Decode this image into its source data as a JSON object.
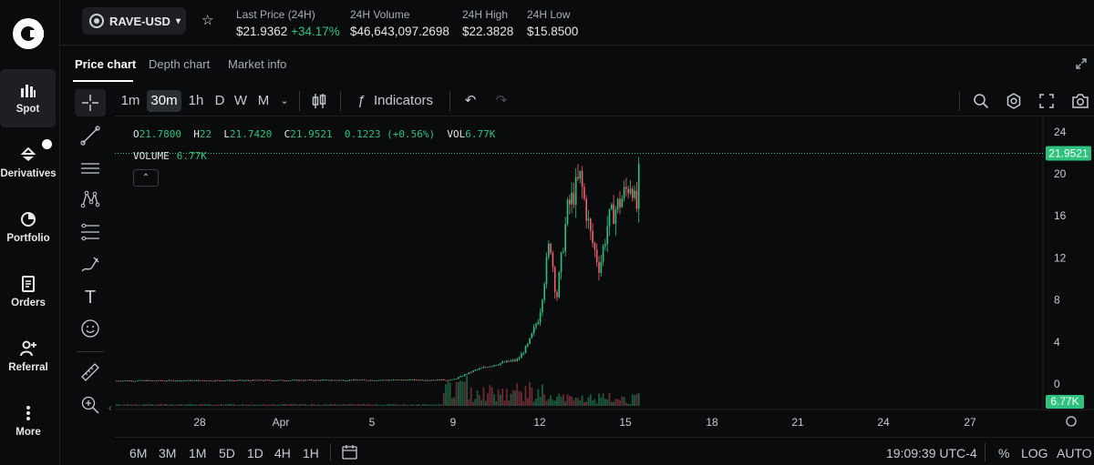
{
  "nav": {
    "items": [
      {
        "label": "Spot",
        "icon": "bar-chart-icon",
        "glyph": "▮▮▮"
      },
      {
        "label": "Derivatives",
        "icon": "scale-icon",
        "glyph": "⇅"
      },
      {
        "label": "Portfolio",
        "icon": "pie-chart-icon",
        "glyph": "◔"
      },
      {
        "label": "Orders",
        "icon": "document-icon",
        "glyph": "☰"
      },
      {
        "label": "Referral",
        "icon": "user-add-icon",
        "glyph": "⚇"
      },
      {
        "label": "More",
        "icon": "more-vertical-icon",
        "glyph": "⋮"
      }
    ]
  },
  "header": {
    "pair": "RAVE-USD",
    "stats": [
      {
        "label": "Last Price (24H)",
        "value": "$21.9362",
        "change": "+34.17%"
      },
      {
        "label": "24H Volume",
        "value": "$46,643,097.2698"
      },
      {
        "label": "24H High",
        "value": "$22.3828"
      },
      {
        "label": "24H Low",
        "value": "$15.8500"
      }
    ]
  },
  "tabs": [
    "Price chart",
    "Depth chart",
    "Market info"
  ],
  "toolbar": {
    "intervals": [
      "1m",
      "30m",
      "1h",
      "D",
      "W",
      "M"
    ],
    "selected_interval": "30m",
    "indicators_label": "Indicators"
  },
  "legend": {
    "o_label": "O",
    "o": "21.7800",
    "h_label": "H",
    "h": "22",
    "l_label": "L",
    "l": "21.7420",
    "c_label": "C",
    "c": "21.9521",
    "change": "0.1223 (+0.56%)",
    "vol_label": "VOL",
    "vol": "6.77K",
    "volume_label": "VOLUME",
    "volume": "6.77K"
  },
  "chart_data": {
    "type": "candlestick",
    "y_ticks": [
      "24",
      "20",
      "16",
      "12",
      "8",
      "4",
      "0"
    ],
    "ylim": [
      -0.5,
      25
    ],
    "x_ticks": [
      "28",
      "Apr",
      "5",
      "9",
      "12",
      "15",
      "18",
      "21",
      "24",
      "27"
    ],
    "last_price_label": "21.9521",
    "volume_label": "6.77K",
    "price_path": [
      {
        "x": "Mar 22",
        "y": 0.3
      },
      {
        "x": "Apr 1",
        "y": 0.35
      },
      {
        "x": "Apr 9",
        "y": 0.4
      },
      {
        "x": "Apr 10",
        "y": 1.3
      },
      {
        "x": "Apr 11",
        "y": 1.9
      },
      {
        "x": "Apr 12",
        "y": 2.3
      },
      {
        "x": "Apr 12.5",
        "y": 3.8
      },
      {
        "x": "Apr 13",
        "y": 6.5
      },
      {
        "x": "Apr 13.5",
        "y": 13.8
      },
      {
        "x": "Apr 13.8",
        "y": 8.0
      },
      {
        "x": "Apr 14.3",
        "y": 16.5
      },
      {
        "x": "Apr 14.9",
        "y": 19.6
      },
      {
        "x": "Apr 15.4",
        "y": 14.0
      },
      {
        "x": "Apr 15.8",
        "y": 11.0
      },
      {
        "x": "Apr 16.2",
        "y": 15.5
      },
      {
        "x": "Apr 16.8",
        "y": 17.5
      },
      {
        "x": "Apr 17.3",
        "y": 19.5
      },
      {
        "x": "Apr 17.5",
        "y": 16.0
      },
      {
        "x": "Apr 17.7",
        "y": 21.9
      }
    ]
  },
  "bottombar": {
    "ranges": [
      "6M",
      "3M",
      "1M",
      "5D",
      "1D",
      "4H",
      "1H"
    ],
    "time": "19:09:39 UTC-4",
    "percent": "%",
    "log": "LOG",
    "auto": "AUTO"
  }
}
